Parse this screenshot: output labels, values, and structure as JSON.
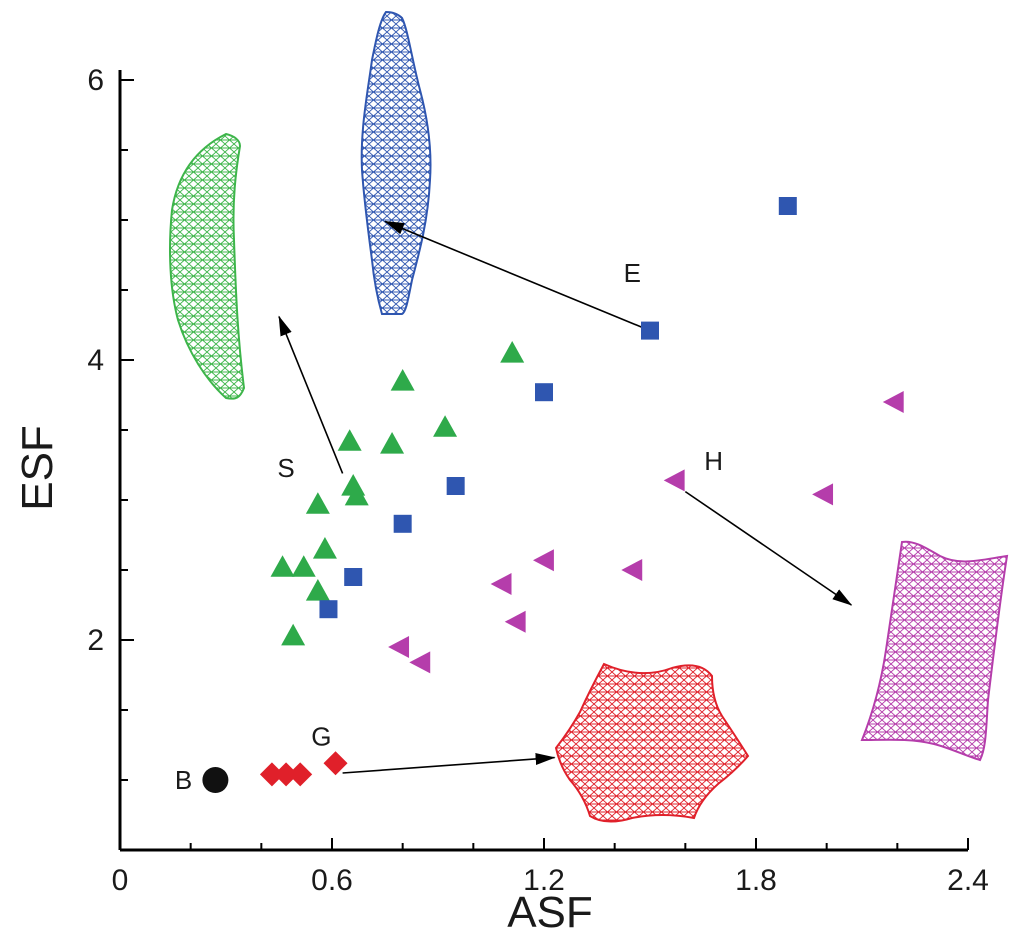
{
  "chart_data": {
    "type": "scatter",
    "xlabel": "ASF",
    "ylabel": "ESF",
    "xlim": [
      0,
      2.4
    ],
    "ylim": [
      0.55,
      6.05
    ],
    "xticks": [
      0,
      0.6,
      1.2,
      1.8,
      2.4
    ],
    "xtick_labels": [
      "0",
      "0.6",
      "1.2",
      "1.8",
      "2.4"
    ],
    "yticks": [
      2,
      4,
      6
    ],
    "ytick_labels": [
      "2",
      "4",
      "6"
    ],
    "series": [
      {
        "name": "B",
        "marker": "circle",
        "color": "#111111",
        "points": [
          [
            0.27,
            1.0
          ]
        ]
      },
      {
        "name": "G",
        "marker": "diamond",
        "color": "#e0202a",
        "points": [
          [
            0.43,
            1.04
          ],
          [
            0.47,
            1.04
          ],
          [
            0.51,
            1.04
          ],
          [
            0.61,
            1.12
          ]
        ]
      },
      {
        "name": "S",
        "marker": "triangle-up",
        "color": "#2eaa4a",
        "points": [
          [
            1.11,
            4.05
          ],
          [
            0.8,
            3.85
          ],
          [
            0.65,
            3.42
          ],
          [
            0.77,
            3.4
          ],
          [
            0.92,
            3.52
          ],
          [
            0.66,
            3.1
          ],
          [
            0.67,
            3.03
          ],
          [
            0.56,
            2.97
          ],
          [
            0.58,
            2.65
          ],
          [
            0.46,
            2.52
          ],
          [
            0.52,
            2.52
          ],
          [
            0.56,
            2.35
          ],
          [
            0.49,
            2.03
          ]
        ]
      },
      {
        "name": "E",
        "marker": "square",
        "color": "#2f56b0",
        "points": [
          [
            1.89,
            5.1
          ],
          [
            1.5,
            4.21
          ],
          [
            1.2,
            3.77
          ],
          [
            0.95,
            3.1
          ],
          [
            0.8,
            2.83
          ],
          [
            0.66,
            2.45
          ],
          [
            0.59,
            2.22
          ]
        ]
      },
      {
        "name": "H",
        "marker": "triangle-left",
        "color": "#b53dab",
        "points": [
          [
            2.19,
            3.7
          ],
          [
            1.57,
            3.14
          ],
          [
            1.99,
            3.04
          ],
          [
            1.2,
            2.57
          ],
          [
            1.45,
            2.5
          ],
          [
            1.08,
            2.4
          ],
          [
            1.12,
            2.13
          ],
          [
            0.79,
            1.95
          ],
          [
            0.85,
            1.84
          ]
        ]
      }
    ],
    "annotations": [
      {
        "text": "B",
        "x": 0.18,
        "y": 1.0
      },
      {
        "text": "G",
        "x": 0.57,
        "y": 1.31
      },
      {
        "text": "S",
        "x": 0.47,
        "y": 3.23
      },
      {
        "text": "E",
        "x": 1.45,
        "y": 4.62
      },
      {
        "text": "H",
        "x": 1.68,
        "y": 3.28
      }
    ],
    "arrows": [
      {
        "from": [
          1.5,
          4.21
        ],
        "to": [
          0.75,
          4.99
        ]
      },
      {
        "from": [
          0.63,
          3.19
        ],
        "to": [
          0.45,
          4.31
        ]
      },
      {
        "from": [
          1.6,
          3.06
        ],
        "to": [
          2.07,
          2.25
        ]
      },
      {
        "from": [
          0.63,
          1.05
        ],
        "to": [
          1.23,
          1.16
        ]
      }
    ],
    "shape_colors": {
      "green": "#3db54a",
      "blue": "#2f56b0",
      "magenta": "#b53dab",
      "red": "#e0202a"
    }
  }
}
